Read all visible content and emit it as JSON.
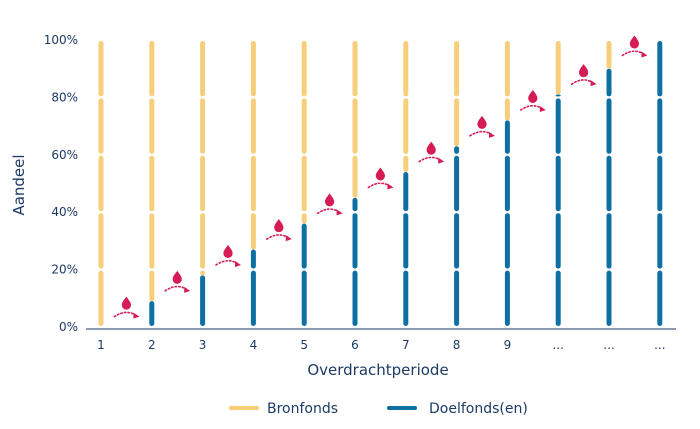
{
  "chart_data": {
    "type": "bar",
    "stacked": true,
    "categories": [
      "1",
      "2",
      "3",
      "4",
      "5",
      "6",
      "7",
      "8",
      "9",
      "...",
      "...",
      "..."
    ],
    "xlabel": "Overdrachtperiode",
    "ylabel": "Aandeel",
    "ylim": [
      0,
      100
    ],
    "y_ticks": [
      "0%",
      "20%",
      "40%",
      "60%",
      "80%",
      "100%"
    ],
    "grid": false,
    "legend_position": "bottom",
    "series": [
      {
        "name": "Doelfonds(en)",
        "color": "#0e6fa3",
        "values": [
          0,
          9,
          18,
          27,
          36,
          45,
          54,
          63,
          72,
          81,
          90,
          100
        ]
      },
      {
        "name": "Bronfonds",
        "color": "#f7cf7b",
        "values": [
          100,
          91,
          82,
          73,
          64,
          55,
          46,
          37,
          28,
          19,
          10,
          0
        ]
      }
    ],
    "transfer_marker": {
      "icon": "droplet-arrow-icon",
      "color": "#d51c55"
    }
  }
}
